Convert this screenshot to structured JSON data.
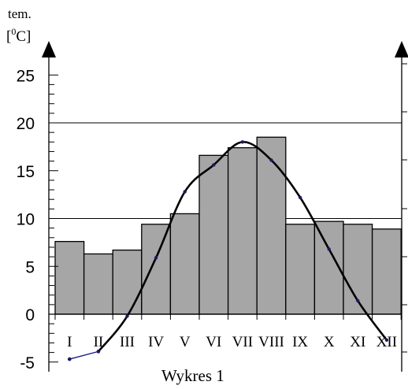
{
  "chart_data": {
    "type": "bar",
    "ylabel_line1": "tem.",
    "ylabel_line2_open": "[",
    "ylabel_line2_sup": "0",
    "ylabel_line2_unit": "C]",
    "caption": "Wykres 1",
    "categories": [
      "I",
      "II",
      "III",
      "IV",
      "V",
      "VI",
      "VII",
      "VIII",
      "IX",
      "X",
      "XI",
      "XII"
    ],
    "bar_values": [
      7.6,
      6.3,
      6.7,
      9.4,
      10.5,
      16.6,
      17.4,
      18.5,
      9.4,
      9.7,
      9.4,
      8.9
    ],
    "line_values": [
      -4.7,
      -3.9,
      -0.2,
      5.9,
      12.8,
      15.6,
      18.0,
      16.1,
      12.2,
      6.8,
      1.4,
      -2.7
    ],
    "dotted_series_values": [
      -4.7,
      -3.9
    ],
    "yticks": [
      "25",
      "20",
      "15",
      "10",
      "5",
      "0",
      "-5"
    ],
    "ylim": [
      -5,
      25
    ],
    "gridlines": [
      10,
      20
    ],
    "colors": {
      "bar_fill": "#a6a6a6",
      "bar_stroke": "#000000",
      "line": "#000000",
      "point": "#1a1a66",
      "dotted_series": "#1a1a80"
    }
  }
}
